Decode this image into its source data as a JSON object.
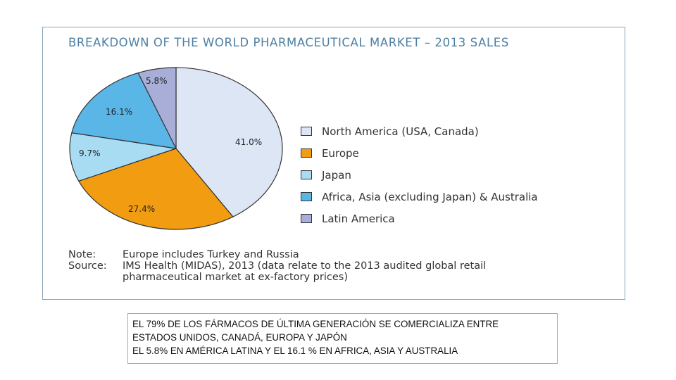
{
  "chart_data": {
    "type": "pie",
    "title": "BREAKDOWN OF THE WORLD PHARMACEUTICAL MARKET – 2013 SALES",
    "unit": "%",
    "slices": [
      {
        "name": "North America (USA, Canada)",
        "value": 41.0,
        "label": "41.0%",
        "color": "#dde6f4"
      },
      {
        "name": "Europe",
        "value": 27.4,
        "label": "27.4%",
        "color": "#f29c12"
      },
      {
        "name": "Japan",
        "value": 9.7,
        "label": "9.7%",
        "color": "#a8dcf3"
      },
      {
        "name": "Africa, Asia (excluding Japan) & Australia",
        "value": 16.1,
        "label": "16.1%",
        "color": "#5bb6e8"
      },
      {
        "name": "Latin America",
        "value": 5.8,
        "label": "5.8%",
        "color": "#a9aed8"
      }
    ],
    "legend": "right",
    "edge_color": "#333333"
  },
  "notes": {
    "note_key": "Note:",
    "note_text": "Europe includes Turkey and Russia",
    "source_key": "Source:",
    "source_line1": "IMS Health (MIDAS), 2013 (data relate to the 2013 audited global retail",
    "source_line2": "pharmaceutical market at ex-factory prices)"
  },
  "caption": {
    "line1": "EL 79% DE LOS FÁRMACOS DE ÚLTIMA GENERACIÓN SE COMERCIALIZA ENTRE",
    "line2": "ESTADOS UNIDOS, CANADÁ, EUROPA Y JAPÓN",
    "line3": "EL 5.8% EN AMÉRICA LATINA  Y EL 16.1 % EN AFRICA, ASIA Y AUSTRALIA"
  }
}
